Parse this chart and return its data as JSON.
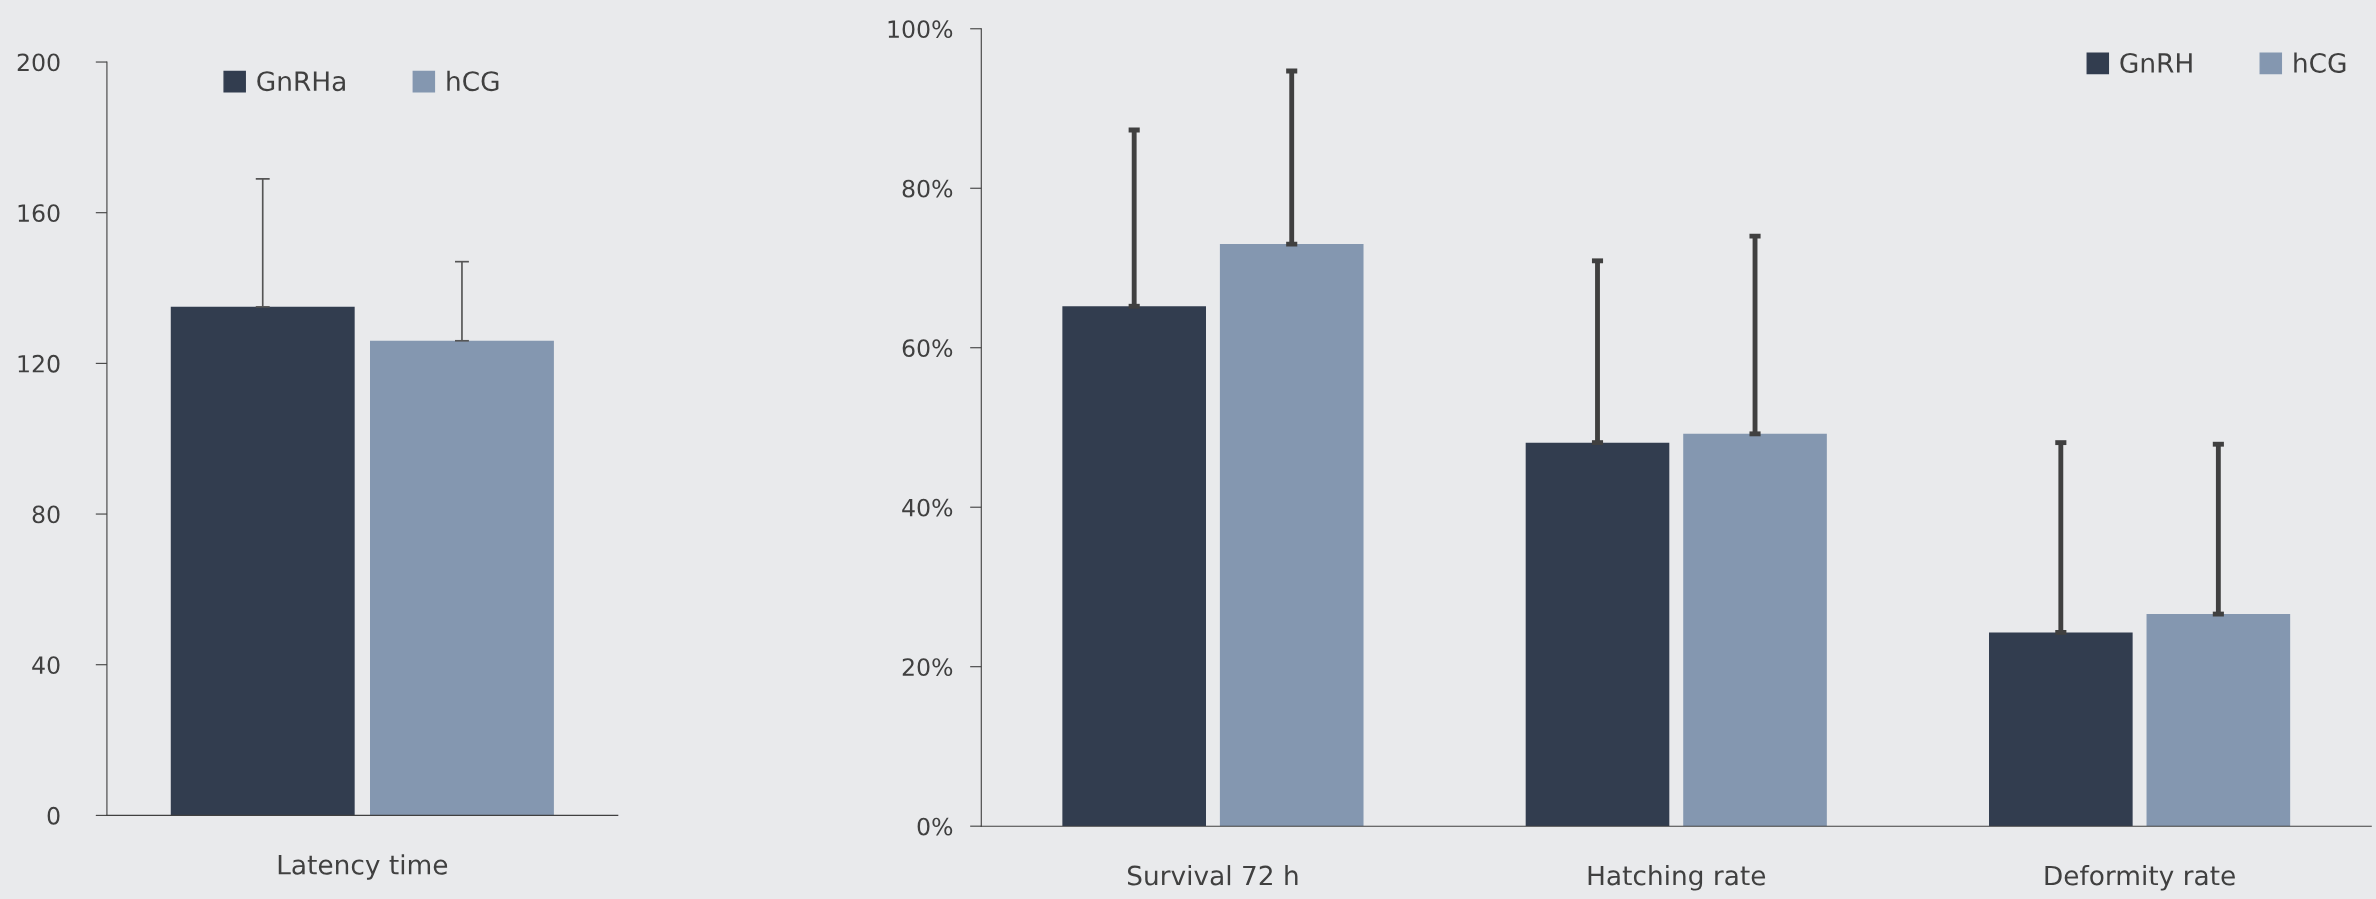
{
  "chart_data": [
    {
      "type": "bar",
      "categories": [
        "Latency time"
      ],
      "ylim": [
        0,
        200
      ],
      "yticks": [
        0,
        40,
        80,
        120,
        160,
        200
      ],
      "legend": "top",
      "grid": false,
      "series": [
        {
          "name": "GnRHa",
          "color": "#323d4f",
          "values": [
            135
          ],
          "errors": [
            [
              135,
              169
            ]
          ]
        },
        {
          "name": "hCG",
          "color": "#8497b0",
          "values": [
            126
          ],
          "errors": [
            [
              126,
              147
            ]
          ]
        }
      ]
    },
    {
      "type": "bar",
      "categories": [
        "Survival 72 h",
        "Hatching rate",
        "Deformity rate"
      ],
      "ylim": [
        0,
        100
      ],
      "yticks": [
        {
          "value": 0,
          "label": "0%"
        },
        {
          "value": 20,
          "label": "20%"
        },
        {
          "value": 40,
          "label": "40%"
        },
        {
          "value": 60,
          "label": "60%"
        },
        {
          "value": 80,
          "label": "80%"
        },
        {
          "value": 100,
          "label": "100%"
        }
      ],
      "legend": "top right",
      "grid": false,
      "series": [
        {
          "name": "GnRH",
          "color": "#323d4f",
          "values": [
            65.2,
            48.1,
            24.3
          ],
          "errors": [
            [
              65.2,
              87.3
            ],
            [
              48.1,
              70.9
            ],
            [
              24.3,
              48.1
            ]
          ]
        },
        {
          "name": "hCG",
          "color": "#8497b0",
          "values": [
            73.0,
            49.2,
            26.6
          ],
          "errors": [
            [
              73.0,
              94.7
            ],
            [
              49.2,
              74.0
            ],
            [
              26.6,
              47.9
            ]
          ]
        }
      ]
    }
  ]
}
